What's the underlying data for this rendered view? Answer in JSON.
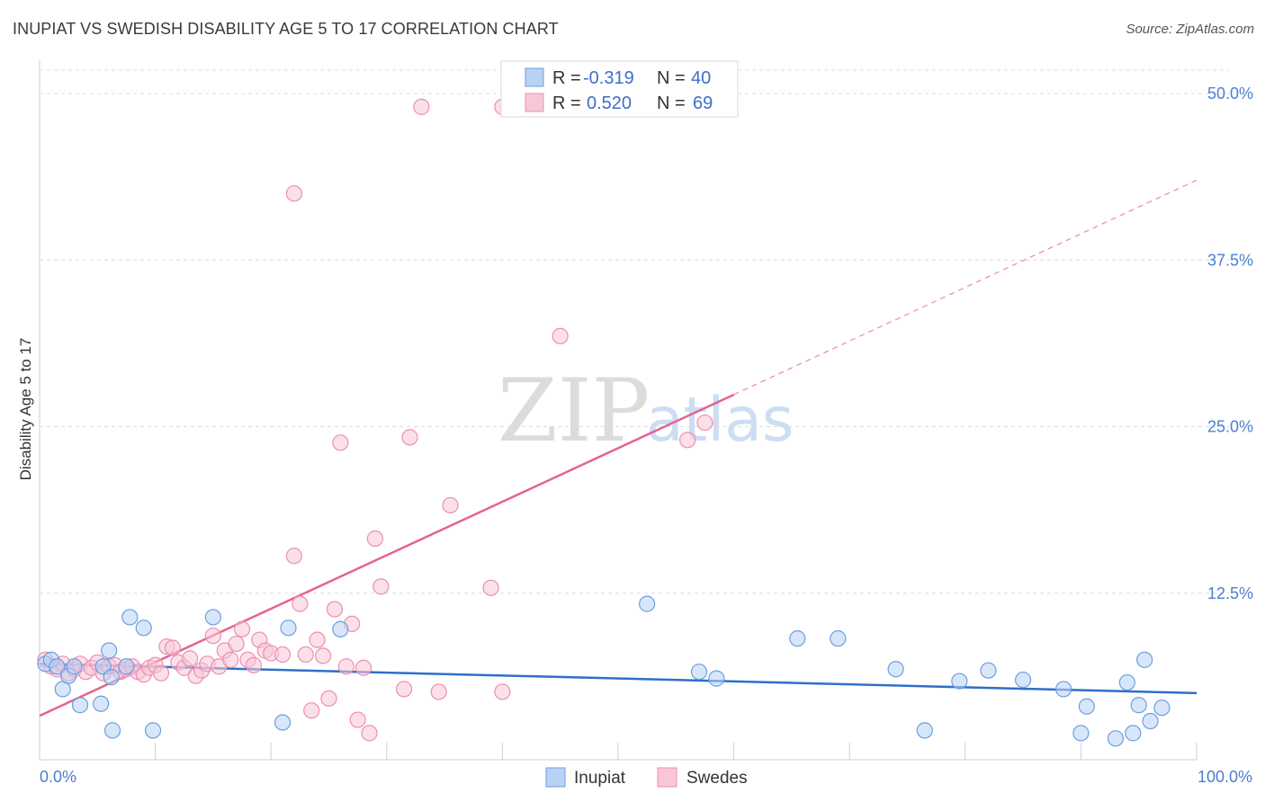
{
  "title": "INUPIAT VS SWEDISH DISABILITY AGE 5 TO 17 CORRELATION CHART",
  "source": "Source: ZipAtlas.com",
  "watermark": {
    "zip": "ZIP",
    "atlas": "atlas"
  },
  "chart_data": {
    "type": "scatter",
    "xlabel": "",
    "ylabel": "Disability Age 5 to 17",
    "xlim": [
      0,
      100
    ],
    "ylim": [
      0,
      52.5
    ],
    "x_tick_labels": [
      {
        "value": 0,
        "label": "0.0%"
      },
      {
        "value": 100,
        "label": "100.0%"
      }
    ],
    "x_minor_ticks": [
      10,
      20,
      30,
      40,
      50,
      60,
      70,
      80,
      90,
      100
    ],
    "y_ticks": [
      {
        "value": 12.5,
        "label": "12.5%"
      },
      {
        "value": 25,
        "label": "25.0%"
      },
      {
        "value": 37.5,
        "label": "37.5%"
      },
      {
        "value": 50,
        "label": "50.0%"
      }
    ],
    "grid": true,
    "legend_position": "top-center",
    "stats": [
      {
        "r_label": "R =",
        "r": "-0.319",
        "n_label": "N =",
        "n": "40"
      },
      {
        "r_label": "R =",
        "r": "0.520",
        "n_label": "N =",
        "n": "69"
      }
    ],
    "series": [
      {
        "name": "Inupiat",
        "color": "#6a9fe0",
        "fill": "#b8d2f4",
        "line_color": "#2f6fc9",
        "trend": {
          "x": [
            0,
            100
          ],
          "y": [
            7.2,
            5.0
          ],
          "dashed_extension": false
        },
        "points": [
          [
            0.5,
            7.2
          ],
          [
            1,
            7.5
          ],
          [
            1.5,
            7.0
          ],
          [
            2,
            5.3
          ],
          [
            2.5,
            6.3
          ],
          [
            3,
            7.0
          ],
          [
            3.5,
            4.1
          ],
          [
            5.5,
            7.0
          ],
          [
            6,
            8.2
          ],
          [
            5.3,
            4.2
          ],
          [
            6.2,
            6.2
          ],
          [
            6.3,
            2.2
          ],
          [
            7.5,
            7.0
          ],
          [
            7.8,
            10.7
          ],
          [
            9,
            9.9
          ],
          [
            9.8,
            2.2
          ],
          [
            15,
            10.7
          ],
          [
            21,
            2.8
          ],
          [
            21.5,
            9.9
          ],
          [
            26,
            9.8
          ],
          [
            52.5,
            11.7
          ],
          [
            57,
            6.6
          ],
          [
            58.5,
            6.1
          ],
          [
            65.5,
            9.1
          ],
          [
            69,
            9.1
          ],
          [
            74,
            6.8
          ],
          [
            76.5,
            2.2
          ],
          [
            79.5,
            5.9
          ],
          [
            82,
            6.7
          ],
          [
            85,
            6.0
          ],
          [
            88.5,
            5.3
          ],
          [
            90,
            2.0
          ],
          [
            90.5,
            4.0
          ],
          [
            93,
            1.6
          ],
          [
            94,
            5.8
          ],
          [
            94.5,
            2.0
          ],
          [
            95,
            4.1
          ],
          [
            95.5,
            7.5
          ],
          [
            96,
            2.9
          ],
          [
            97,
            3.9
          ]
        ]
      },
      {
        "name": "Swedes",
        "color": "#ec8fb0",
        "fill": "#f8c7d7",
        "line_color": "#e5638f",
        "trend": {
          "x": [
            0,
            60
          ],
          "y": [
            3.3,
            27.4
          ],
          "extension_x": [
            60,
            100
          ],
          "extension_y": [
            27.4,
            43.5
          ]
        },
        "points": [
          [
            0.5,
            7.5
          ],
          [
            1,
            7.0
          ],
          [
            1.5,
            6.8
          ],
          [
            2,
            7.2
          ],
          [
            2.5,
            6.5
          ],
          [
            3,
            6.8
          ],
          [
            3.5,
            7.2
          ],
          [
            4,
            6.6
          ],
          [
            4.5,
            6.9
          ],
          [
            5,
            7.3
          ],
          [
            5.5,
            6.5
          ],
          [
            6,
            7.0
          ],
          [
            6.5,
            7.1
          ],
          [
            7,
            6.6
          ],
          [
            7.5,
            6.8
          ],
          [
            8,
            7.0
          ],
          [
            8.5,
            6.6
          ],
          [
            9,
            6.4
          ],
          [
            9.5,
            6.9
          ],
          [
            10,
            7.1
          ],
          [
            10.5,
            6.5
          ],
          [
            11,
            8.5
          ],
          [
            11.5,
            8.4
          ],
          [
            12,
            7.3
          ],
          [
            12.5,
            6.9
          ],
          [
            13,
            7.6
          ],
          [
            13.5,
            6.3
          ],
          [
            14,
            6.7
          ],
          [
            14.5,
            7.2
          ],
          [
            15,
            9.3
          ],
          [
            15.5,
            7.0
          ],
          [
            16,
            8.2
          ],
          [
            16.5,
            7.5
          ],
          [
            17,
            8.7
          ],
          [
            17.5,
            9.8
          ],
          [
            18,
            7.5
          ],
          [
            18.5,
            7.1
          ],
          [
            19,
            9.0
          ],
          [
            19.5,
            8.2
          ],
          [
            20,
            8.0
          ],
          [
            21,
            7.9
          ],
          [
            22,
            15.3
          ],
          [
            22.5,
            11.7
          ],
          [
            22,
            42.5
          ],
          [
            23,
            7.9
          ],
          [
            23.5,
            3.7
          ],
          [
            24,
            9.0
          ],
          [
            24.5,
            7.8
          ],
          [
            25,
            4.6
          ],
          [
            25.5,
            11.3
          ],
          [
            26,
            23.8
          ],
          [
            26.5,
            7.0
          ],
          [
            27,
            10.2
          ],
          [
            27.5,
            3.0
          ],
          [
            28,
            6.9
          ],
          [
            28.5,
            2.0
          ],
          [
            29,
            16.6
          ],
          [
            29.5,
            13.0
          ],
          [
            31.5,
            5.3
          ],
          [
            32,
            24.2
          ],
          [
            33,
            49.0
          ],
          [
            34.5,
            5.1
          ],
          [
            35.5,
            19.1
          ],
          [
            39,
            12.9
          ],
          [
            40,
            5.1
          ],
          [
            45,
            31.8
          ],
          [
            56,
            24.0
          ],
          [
            57.5,
            25.3
          ],
          [
            40,
            49.0
          ]
        ]
      }
    ]
  }
}
